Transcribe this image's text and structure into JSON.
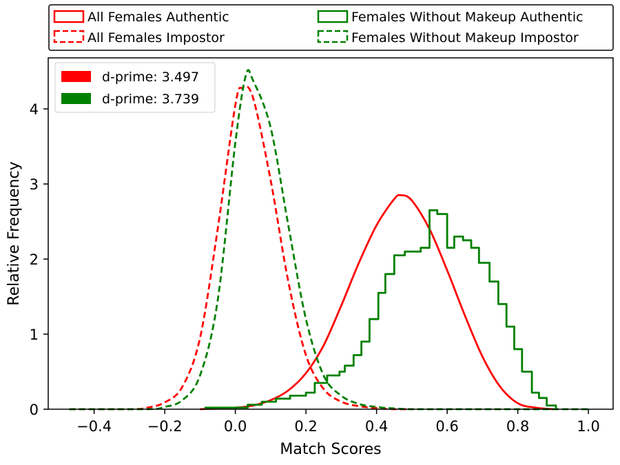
{
  "chart_data": {
    "type": "histogram",
    "xlabel": "Match Scores",
    "ylabel": "Relative Frequency",
    "xlim": [
      -0.53,
      1.07
    ],
    "ylim": [
      0,
      4.68
    ],
    "xticks": [
      -0.4,
      -0.2,
      0.0,
      0.2,
      0.4,
      0.6,
      0.8,
      1.0
    ],
    "xtick_labels": [
      "−0.4",
      "−0.2",
      "0.0",
      "0.2",
      "0.4",
      "0.6",
      "0.8",
      "1.0"
    ],
    "yticks": [
      0,
      1,
      2,
      3,
      4
    ],
    "ytick_labels": [
      "0",
      "1",
      "2",
      "3",
      "4"
    ],
    "top_legend": [
      {
        "label": "All Females Authentic",
        "color": "#ff0000",
        "style": "solid"
      },
      {
        "label": "Females Without Makeup Authentic",
        "color": "#008000",
        "style": "solid"
      },
      {
        "label": "All Females Impostor",
        "color": "#ff0000",
        "style": "dashed"
      },
      {
        "label": "Females Without Makeup Impostor",
        "color": "#008000",
        "style": "dashed"
      }
    ],
    "dprime_legend": [
      {
        "label": "d-prime: 3.497",
        "color": "#ff0000"
      },
      {
        "label": "d-prime: 3.739",
        "color": "#008000"
      }
    ],
    "series": [
      {
        "name": "All Females Impostor",
        "color": "#ff0000",
        "style": "dashed",
        "kind": "smooth",
        "x": [
          -0.47,
          -0.3,
          -0.25,
          -0.2,
          -0.15,
          -0.1,
          -0.05,
          0.0,
          0.02,
          0.05,
          0.1,
          0.15,
          0.2,
          0.25,
          0.3,
          0.35,
          0.4,
          0.45,
          0.5
        ],
        "y": [
          0.0,
          0.0,
          0.02,
          0.09,
          0.3,
          0.95,
          2.4,
          4.05,
          4.28,
          4.15,
          3.05,
          1.7,
          0.72,
          0.27,
          0.1,
          0.04,
          0.015,
          0.0,
          0.0
        ]
      },
      {
        "name": "All Females Authentic",
        "color": "#ff0000",
        "style": "solid",
        "kind": "smooth",
        "x": [
          -0.1,
          0.0,
          0.05,
          0.1,
          0.15,
          0.2,
          0.25,
          0.3,
          0.35,
          0.4,
          0.45,
          0.47,
          0.5,
          0.55,
          0.6,
          0.65,
          0.7,
          0.75,
          0.8,
          0.85,
          0.9
        ],
        "y": [
          0.0,
          0.02,
          0.05,
          0.12,
          0.25,
          0.48,
          0.85,
          1.38,
          1.95,
          2.45,
          2.8,
          2.85,
          2.78,
          2.4,
          1.85,
          1.25,
          0.7,
          0.3,
          0.08,
          0.02,
          0.0
        ]
      },
      {
        "name": "Females Without Makeup Impostor",
        "color": "#008000",
        "style": "dashed",
        "kind": "smooth",
        "x": [
          -0.47,
          -0.25,
          -0.2,
          -0.15,
          -0.1,
          -0.05,
          0.0,
          0.03,
          0.05,
          0.1,
          0.15,
          0.2,
          0.25,
          0.3,
          0.35,
          0.4,
          0.45,
          0.5,
          0.6,
          0.8,
          1.0
        ],
        "y": [
          0.0,
          0.0,
          0.03,
          0.12,
          0.45,
          1.45,
          3.55,
          4.45,
          4.38,
          3.75,
          2.45,
          1.2,
          0.45,
          0.18,
          0.07,
          0.03,
          0.01,
          0.0,
          0.0,
          0.0,
          0.0
        ]
      },
      {
        "name": "Females Without Makeup Authentic",
        "color": "#008000",
        "style": "solid",
        "kind": "steps",
        "edges": [
          -0.085,
          0.035,
          0.075,
          0.115,
          0.155,
          0.2,
          0.225,
          0.26,
          0.295,
          0.31,
          0.335,
          0.357,
          0.38,
          0.405,
          0.425,
          0.45,
          0.48,
          0.525,
          0.55,
          0.572,
          0.6,
          0.62,
          0.645,
          0.668,
          0.69,
          0.72,
          0.745,
          0.768,
          0.79,
          0.812,
          0.84,
          0.86,
          0.882,
          0.908
        ],
        "y": [
          0.02,
          0.06,
          0.1,
          0.14,
          0.18,
          0.22,
          0.35,
          0.45,
          0.5,
          0.58,
          0.72,
          0.9,
          1.2,
          1.55,
          1.8,
          2.05,
          2.1,
          2.15,
          2.65,
          2.6,
          2.15,
          2.3,
          2.25,
          2.15,
          1.95,
          1.7,
          1.4,
          1.1,
          0.8,
          0.5,
          0.22,
          0.15,
          0.05
        ]
      }
    ]
  }
}
